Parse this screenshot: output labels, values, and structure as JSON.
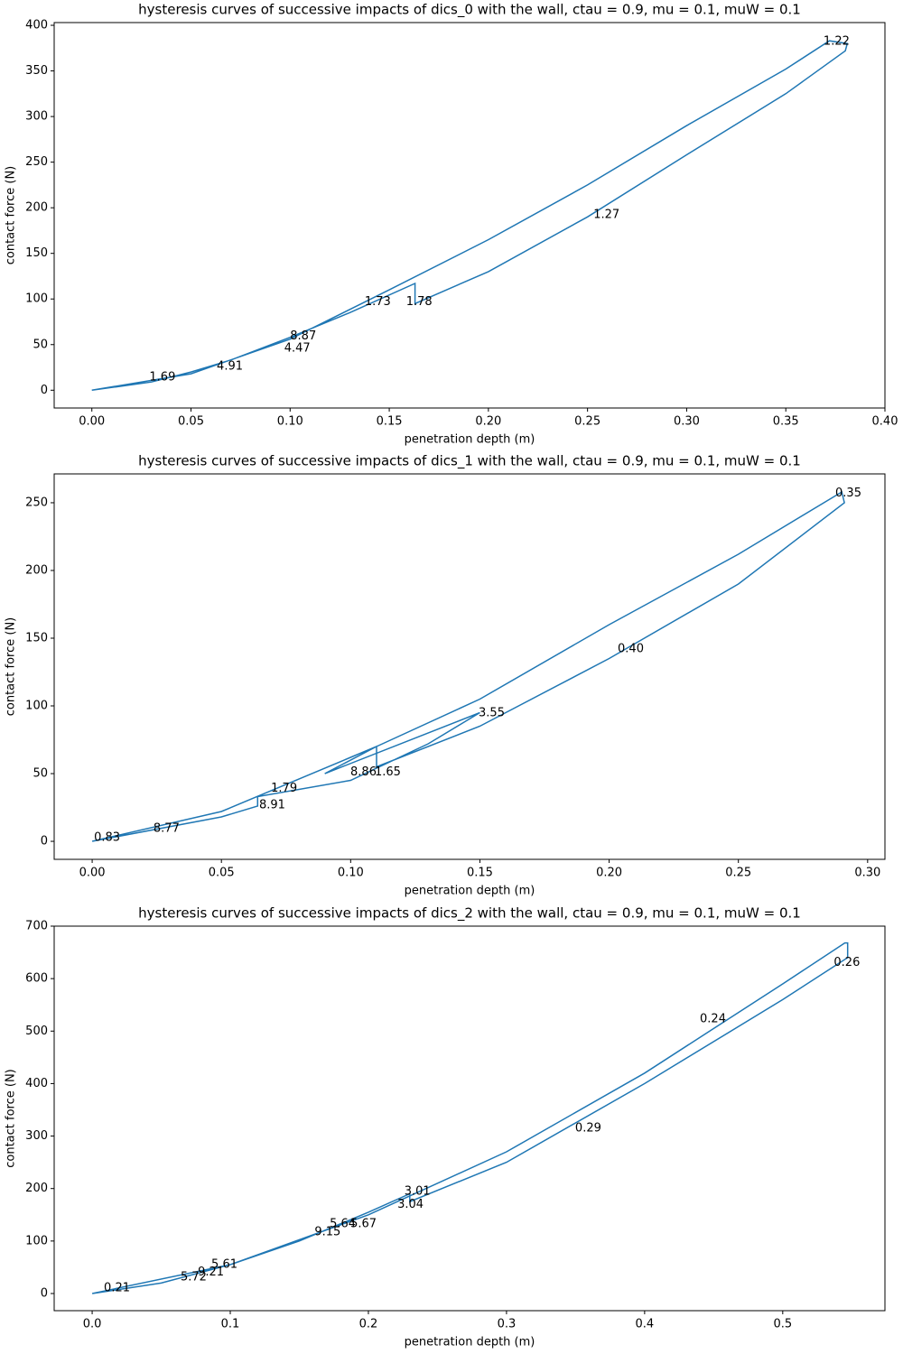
{
  "chart_data": [
    {
      "type": "line",
      "title": "hysteresis curves of successive impacts of dics_0 with the wall, ctau = 0.9, mu = 0.1, muW = 0.1",
      "x_label": "penetration depth (m)",
      "y_label": "contact force (N)",
      "xlim": [
        -0.019,
        0.4
      ],
      "ylim": [
        -19.5,
        403
      ],
      "xticks": [
        {
          "value": 0,
          "label": "0.00"
        },
        {
          "value": 0.05,
          "label": "0.05"
        },
        {
          "value": 0.1,
          "label": "0.10"
        },
        {
          "value": 0.15,
          "label": "0.15"
        },
        {
          "value": 0.2,
          "label": "0.20"
        },
        {
          "value": 0.25,
          "label": "0.25"
        },
        {
          "value": 0.3,
          "label": "0.30"
        },
        {
          "value": 0.35,
          "label": "0.35"
        },
        {
          "value": 0.4,
          "label": "0.40"
        }
      ],
      "yticks": [
        0,
        50,
        100,
        150,
        200,
        250,
        300,
        350,
        400
      ],
      "series": [
        {
          "color": "#1f77b4",
          "x": [
            0,
            0.05,
            0.1,
            0.15,
            0.2,
            0.25,
            0.3,
            0.35,
            0.372,
            0.381,
            0.38,
            0.35,
            0.3,
            0.25,
            0.2,
            0.163,
            0.163,
            0.13,
            0.1,
            0.07,
            0.05,
            0.03,
            0
          ],
          "values": [
            0,
            18,
            56,
            110,
            165,
            225,
            290,
            352,
            383,
            380,
            372,
            325,
            258,
            190,
            130,
            95,
            117,
            85,
            58,
            33,
            20,
            9,
            0
          ]
        }
      ],
      "annotations": [
        {
          "text": "1.22",
          "x": 0.369,
          "y": 382
        },
        {
          "text": "1.27",
          "x": 0.253,
          "y": 192
        },
        {
          "text": "1.73",
          "x": 0.1376,
          "y": 97
        },
        {
          "text": "1.78",
          "x": 0.1585,
          "y": 97
        },
        {
          "text": "8.87",
          "x": 0.1,
          "y": 59
        },
        {
          "text": "4.47",
          "x": 0.097,
          "y": 46
        },
        {
          "text": "4.91",
          "x": 0.063,
          "y": 26
        },
        {
          "text": "1.69",
          "x": 0.029,
          "y": 14
        }
      ]
    },
    {
      "type": "line",
      "title": "hysteresis curves of successive impacts of dics_1 with the wall, ctau = 0.9, mu = 0.1, muW = 0.1",
      "x_label": "penetration depth (m)",
      "y_label": "contact force (N)",
      "xlim": [
        -0.0147,
        0.3067
      ],
      "ylim": [
        -13.3,
        271.3
      ],
      "xticks": [
        {
          "value": 0,
          "label": "0.00"
        },
        {
          "value": 0.05,
          "label": "0.05"
        },
        {
          "value": 0.1,
          "label": "0.10"
        },
        {
          "value": 0.15,
          "label": "0.15"
        },
        {
          "value": 0.2,
          "label": "0.20"
        },
        {
          "value": 0.25,
          "label": "0.25"
        },
        {
          "value": 0.3,
          "label": "0.30"
        }
      ],
      "yticks": [
        0,
        50,
        100,
        150,
        200,
        250
      ],
      "series": [
        {
          "color": "#1f77b4",
          "x": [
            0,
            0.05,
            0.1,
            0.11,
            0.15,
            0.2,
            0.25,
            0.29,
            0.291,
            0.25,
            0.2,
            0.15,
            0.11,
            0.11,
            0.09,
            0.15,
            0.13,
            0.1,
            0.064,
            0.064,
            0.05,
            0
          ],
          "values": [
            0,
            22,
            62,
            70,
            105,
            160,
            212,
            258,
            250,
            190,
            135,
            85,
            55,
            70,
            50,
            95,
            72,
            45,
            33,
            26,
            18,
            0
          ]
        }
      ],
      "annotations": [
        {
          "text": "0.35",
          "x": 0.2875,
          "y": 257
        },
        {
          "text": "0.40",
          "x": 0.2033,
          "y": 142
        },
        {
          "text": "3.55",
          "x": 0.1495,
          "y": 94.7
        },
        {
          "text": "1.65",
          "x": 0.1093,
          "y": 51
        },
        {
          "text": "8.86",
          "x": 0.0999,
          "y": 51
        },
        {
          "text": "1.79",
          "x": 0.0692,
          "y": 39
        },
        {
          "text": "8.91",
          "x": 0.0646,
          "y": 26.7
        },
        {
          "text": "8.77",
          "x": 0.0237,
          "y": 9.3
        },
        {
          "text": "0.83",
          "x": 0.0007,
          "y": 2.7
        }
      ]
    },
    {
      "type": "line",
      "title": "hysteresis curves of successive impacts of dics_2 with the wall, ctau = 0.9, mu = 0.1, muW = 0.1",
      "x_label": "penetration depth (m)",
      "y_label": "contact force (N)",
      "xlim": [
        -0.0275,
        0.574
      ],
      "ylim": [
        -32.7,
        700
      ],
      "xticks": [
        {
          "value": 0,
          "label": "0.0"
        },
        0.1,
        0.2,
        0.3,
        0.4,
        0.5
      ],
      "yticks": [
        0,
        100,
        200,
        300,
        400,
        500,
        600,
        700
      ],
      "series": [
        {
          "color": "#1f77b4",
          "x": [
            0,
            0.1,
            0.2,
            0.3,
            0.4,
            0.5,
            0.545,
            0.547,
            0.547,
            0.5,
            0.4,
            0.3,
            0.23,
            0.23,
            0.2,
            0.15,
            0.1,
            0.05,
            0
          ],
          "values": [
            0,
            55,
            150,
            270,
            420,
            590,
            668,
            668,
            640,
            560,
            400,
            250,
            175,
            190,
            155,
            100,
            55,
            20,
            0
          ]
        }
      ],
      "annotations": [
        {
          "text": "0.26",
          "x": 0.537,
          "y": 630
        },
        {
          "text": "0.24",
          "x": 0.44,
          "y": 523
        },
        {
          "text": "0.29",
          "x": 0.3497,
          "y": 315
        },
        {
          "text": "3.01",
          "x": 0.226,
          "y": 194
        },
        {
          "text": "3.04",
          "x": 0.221,
          "y": 169
        },
        {
          "text": "5.64",
          "x": 0.172,
          "y": 132
        },
        {
          "text": "5.67",
          "x": 0.187,
          "y": 132
        },
        {
          "text": "9.15",
          "x": 0.161,
          "y": 117
        },
        {
          "text": "5.61",
          "x": 0.0863,
          "y": 55
        },
        {
          "text": "9.21",
          "x": 0.0765,
          "y": 40
        },
        {
          "text": "5.72",
          "x": 0.064,
          "y": 31
        },
        {
          "text": "0.21",
          "x": 0.0085,
          "y": 10
        }
      ]
    }
  ]
}
